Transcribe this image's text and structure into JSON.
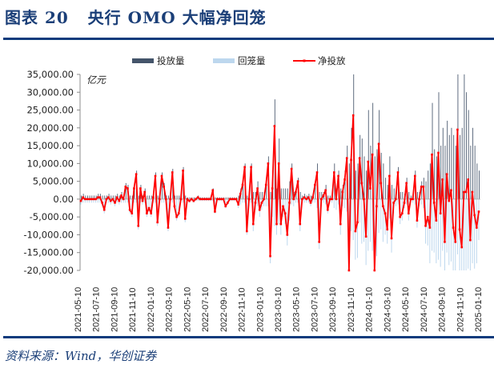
{
  "header": {
    "title": "图表 20   央行 OMO 大幅净回笼"
  },
  "footer": {
    "source": "资料来源：Wind，华创证券"
  },
  "colors": {
    "injection": "#44546a",
    "withdrawal": "#bdd7ee",
    "net": "#ff0000",
    "title": "#1b3f78"
  },
  "chart_data": {
    "type": "bar+line",
    "title": "",
    "ylabel": "亿元",
    "ylim": [
      -20000,
      35000
    ],
    "yticks": [
      35000,
      30000,
      25000,
      20000,
      15000,
      10000,
      5000,
      0,
      -5000,
      -10000,
      -15000,
      -20000
    ],
    "ytick_labels": [
      "35,000.00",
      "30,000.00",
      "25,000.00",
      "20,000.00",
      "15,000.00",
      "10,000.00",
      "5,000.00",
      "0.00",
      "-5,000.00",
      "-10,000.00",
      "-15,000.00",
      "-20,000.00"
    ],
    "xtick_labels": [
      "2021-05-10",
      "2021-07-10",
      "2021-09-10",
      "2021-11-10",
      "2022-01-10",
      "2022-03-10",
      "2022-05-10",
      "2022-07-10",
      "2022-09-10",
      "2022-11-10",
      "2023-01-10",
      "2023-03-10",
      "2023-05-10",
      "2023-07-10",
      "2023-09-10",
      "2023-11-10",
      "2024-01-10",
      "2024-03-10",
      "2024-05-10",
      "2024-07-10",
      "2024-09-10",
      "2024-11-10",
      "2025-01-10"
    ],
    "grid": false,
    "legend_position": "top",
    "series": [
      {
        "name": "投放量",
        "type": "bar",
        "values": [
          1000,
          1500,
          1000,
          1000,
          1000,
          1000,
          1000,
          1000,
          1500,
          1500,
          1000,
          1000,
          1000,
          1500,
          1000,
          1000,
          1000,
          1500,
          1000,
          2000,
          1000,
          4500,
          4000,
          1000,
          1000,
          4000,
          8000,
          1000,
          4000,
          1000,
          3000,
          1000,
          1000,
          1000,
          1500,
          7500,
          1000,
          1000,
          7500,
          4500,
          1000,
          1000,
          1000,
          8500,
          1000,
          1000,
          1000,
          1000,
          9000,
          1000,
          500,
          500,
          500,
          500,
          500,
          1000,
          500,
          500,
          500,
          500,
          500,
          500,
          3000,
          500,
          500,
          500,
          500,
          500,
          500,
          500,
          500,
          500,
          500,
          500,
          1000,
          3000,
          5000,
          10000,
          1000,
          2000,
          10000,
          2000,
          2000,
          5000,
          2000,
          2000,
          2000,
          6000,
          12000,
          2000,
          8000,
          28000,
          3000,
          17000,
          3000,
          3000,
          3000,
          3000,
          5000,
          10000,
          2000,
          3000,
          6000,
          2000,
          1000,
          1500,
          1000,
          1500,
          1000,
          1500,
          5000,
          10000,
          2000,
          2000,
          2000,
          4000,
          1000,
          1000,
          1000,
          10000,
          3000,
          8000,
          3000,
          4000,
          8000,
          15000,
          10000,
          20000,
          35000,
          8000,
          10000,
          18000,
          17000,
          12000,
          8000,
          25000,
          15000,
          27000,
          12000,
          14000,
          25000,
          13000,
          10000,
          6000,
          4000,
          12000,
          4000,
          3000,
          2000,
          9000,
          2000,
          2000,
          1500,
          6000,
          2000,
          1000,
          1000,
          8000,
          2000,
          2000,
          5000,
          6000,
          5000,
          8000,
          10000,
          27000,
          14000,
          12000,
          30000,
          15000,
          20000,
          15000,
          22000,
          18000,
          20000,
          18000,
          15000,
          35000,
          18000,
          20000,
          35000,
          30000,
          25000,
          15000,
          20000,
          15000,
          10000,
          8000
        ]
      },
      {
        "name": "回笼量",
        "type": "bar",
        "values": [
          1500,
          1000,
          1000,
          1000,
          1000,
          1000,
          1000,
          1000,
          1000,
          1000,
          2000,
          4000,
          1000,
          1000,
          1500,
          1000,
          2000,
          1000,
          1500,
          1000,
          1000,
          1000,
          1000,
          4000,
          5000,
          1000,
          1000,
          8500,
          1000,
          1500,
          1000,
          5000,
          3500,
          5000,
          1000,
          1000,
          7500,
          1000,
          1000,
          1000,
          1000,
          9000,
          1000,
          1000,
          3000,
          6000,
          5000,
          1000,
          1000,
          6500,
          500,
          1000,
          500,
          1000,
          500,
          500,
          500,
          500,
          500,
          500,
          500,
          500,
          500,
          4000,
          500,
          500,
          500,
          500,
          2500,
          1500,
          500,
          500,
          500,
          500,
          2500,
          1500,
          1000,
          1000,
          10000,
          2000,
          1000,
          9000,
          3000,
          2000,
          5000,
          3000,
          2000,
          2000,
          2000,
          18000,
          5000,
          7500,
          10000,
          7000,
          10000,
          5000,
          7000,
          13000,
          6000,
          1500,
          2000,
          1000,
          1000,
          9000,
          1000,
          1000,
          1000,
          1000,
          2000,
          1000,
          1000,
          2500,
          14000,
          2000,
          1000,
          1500,
          4000,
          1000,
          1000,
          2500,
          3000,
          1500,
          10000,
          2000,
          2500,
          3500,
          30000,
          9000,
          11500,
          17000,
          16500,
          6500,
          12500,
          12000,
          18500,
          14500,
          12000,
          14500,
          32000,
          16000,
          9500,
          8500,
          12000,
          10000,
          12500,
          5500,
          15000,
          4000,
          2000,
          1500,
          7000,
          6000,
          2500,
          1500,
          6000,
          1000,
          1000,
          1500,
          8000,
          2000,
          1500,
          2500,
          12500,
          13000,
          18000,
          14500,
          15000,
          18000,
          17000,
          19000,
          14500,
          27000,
          15000,
          18500,
          17500,
          26000,
          27000,
          15500,
          26500,
          33500,
          33000,
          28000,
          19500,
          26500,
          18000,
          19500,
          18000,
          11500
        ]
      },
      {
        "name": "净投放",
        "type": "line",
        "values": [
          -500,
          500,
          0,
          0,
          0,
          0,
          0,
          0,
          500,
          500,
          -1000,
          -3000,
          0,
          500,
          -500,
          0,
          -1000,
          500,
          -500,
          1000,
          0,
          3500,
          3000,
          -3000,
          -4000,
          3000,
          7000,
          -7500,
          3000,
          -500,
          2000,
          -4000,
          -2500,
          -4000,
          500,
          6500,
          -6500,
          0,
          6500,
          3500,
          0,
          -8000,
          0,
          7500,
          -2000,
          -5000,
          -4000,
          0,
          8000,
          -5500,
          0,
          -500,
          0,
          -500,
          0,
          500,
          0,
          0,
          0,
          0,
          0,
          0,
          2500,
          -3500,
          0,
          0,
          0,
          0,
          -2000,
          -1000,
          0,
          0,
          0,
          0,
          -1500,
          1500,
          4000,
          9000,
          -9000,
          0,
          9000,
          -7000,
          -1000,
          3000,
          -3000,
          -1000,
          0,
          4000,
          10000,
          -16000,
          3000,
          20500,
          -7000,
          10000,
          -7000,
          -2000,
          -4000,
          -10000,
          -1000,
          8500,
          0,
          2000,
          5000,
          -7000,
          0,
          500,
          0,
          500,
          -1000,
          500,
          4000,
          7500,
          -12000,
          0,
          1000,
          2500,
          -3000,
          0,
          0,
          7500,
          0,
          6500,
          -7000,
          2000,
          5500,
          11500,
          -20000,
          11000,
          23500,
          -9000,
          -6500,
          11500,
          4500,
          0,
          -10500,
          10500,
          3000,
          12500,
          -20000,
          -2000,
          15500,
          4500,
          -2000,
          -4000,
          -8500,
          6500,
          -11000,
          -1000,
          0,
          7500,
          -5000,
          -4000,
          -1000,
          4500,
          -4000,
          0,
          0,
          6500,
          -6000,
          0,
          3500,
          3500,
          -7500,
          -5000,
          -8000,
          12500,
          -1000,
          -6000,
          13000,
          -4000,
          5500,
          -12000,
          7000,
          -500,
          2500,
          -8000,
          -12000,
          19500,
          -8500,
          -13500,
          2000,
          2000,
          5500,
          -11500,
          2000,
          -4500,
          -8000,
          -3500
        ]
      }
    ]
  }
}
